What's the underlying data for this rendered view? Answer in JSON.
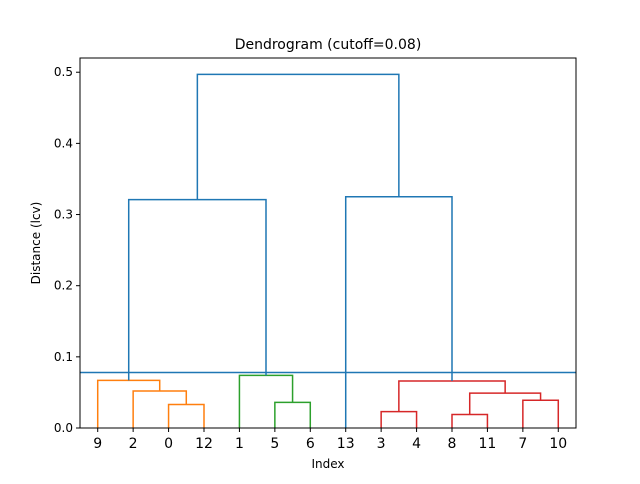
{
  "chart_data": {
    "type": "dendrogram",
    "title": "Dendrogram (cutoff=0.08)",
    "xlabel": "Index",
    "ylabel": "Distance (lcv)",
    "ylim": [
      0,
      0.52
    ],
    "yticks": [
      0.0,
      0.1,
      0.2,
      0.3,
      0.4,
      0.5
    ],
    "ytick_labels": [
      "0.0",
      "0.1",
      "0.2",
      "0.3",
      "0.4",
      "0.5"
    ],
    "leaf_order": [
      "9",
      "2",
      "0",
      "12",
      "1",
      "5",
      "6",
      "13",
      "3",
      "4",
      "8",
      "11",
      "7",
      "10"
    ],
    "cutoff": 0.078,
    "cutoff_color": "#1f77b4",
    "links": [
      {
        "left": 2,
        "right": 3,
        "height": 0.033,
        "color": "#ff7f0e"
      },
      {
        "left": 1,
        "right": 2.5,
        "height": 0.052,
        "color": "#ff7f0e"
      },
      {
        "left": 0,
        "right": 1.75,
        "height": 0.067,
        "color": "#ff7f0e"
      },
      {
        "left": 5,
        "right": 6,
        "height": 0.036,
        "color": "#2ca02c"
      },
      {
        "left": 4,
        "right": 5.5,
        "height": 0.074,
        "color": "#2ca02c"
      },
      {
        "left": 8,
        "right": 9,
        "height": 0.023,
        "color": "#d62728"
      },
      {
        "left": 10,
        "right": 11,
        "height": 0.019,
        "color": "#d62728"
      },
      {
        "left": 12,
        "right": 13,
        "height": 0.039,
        "color": "#d62728"
      },
      {
        "left": 10.5,
        "right": 12.5,
        "height": 0.049,
        "color": "#d62728"
      },
      {
        "left": 8.5,
        "right": 11.5,
        "height": 0.066,
        "color": "#d62728"
      },
      {
        "left": 0.875,
        "right": 4.75,
        "height": 0.321,
        "color": "#1f77b4"
      },
      {
        "left": 7,
        "right": 10,
        "height": 0.325,
        "color": "#1f77b4"
      },
      {
        "left": 2.8125,
        "right": 8.5,
        "height": 0.497,
        "color": "#1f77b4"
      }
    ],
    "child_heights": [
      [
        0,
        0
      ],
      [
        0,
        0.033
      ],
      [
        0,
        0.052
      ],
      [
        0,
        0
      ],
      [
        0,
        0.036
      ],
      [
        0,
        0
      ],
      [
        0,
        0
      ],
      [
        0,
        0
      ],
      [
        0.019,
        0.039
      ],
      [
        0.023,
        0.049
      ],
      [
        0.067,
        0.074
      ],
      [
        0,
        0.066
      ],
      [
        0.321,
        0.325
      ]
    ],
    "grid": false
  }
}
